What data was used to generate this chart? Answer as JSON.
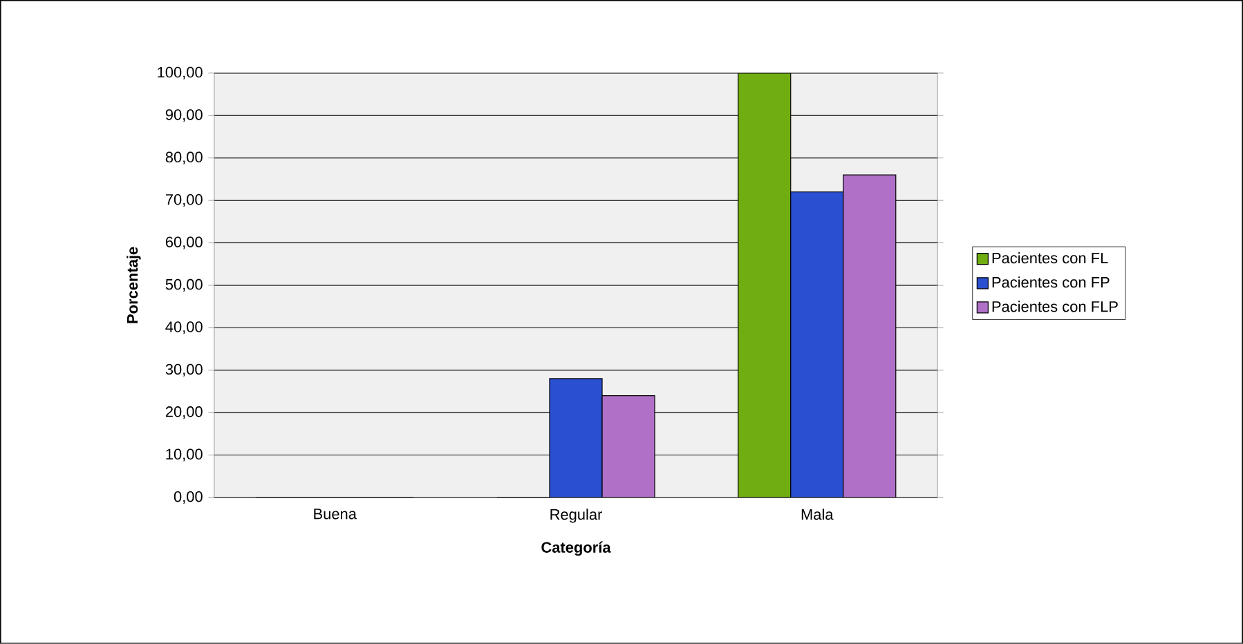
{
  "chart_data": {
    "type": "bar",
    "xlabel": "Categoría",
    "ylabel": "Porcentaje",
    "categories": [
      "Buena",
      "Regular",
      "Mala"
    ],
    "series": [
      {
        "name": "Pacientes con FL",
        "color": "#70ad10",
        "values": [
          0,
          0,
          100
        ]
      },
      {
        "name": "Pacientes con FP",
        "color": "#2a4fd0",
        "values": [
          0,
          28,
          72
        ]
      },
      {
        "name": "Pacientes con FLP",
        "color": "#b070c8",
        "values": [
          0,
          24,
          76
        ]
      }
    ],
    "ylim": [
      0,
      100
    ],
    "yticks": [
      {
        "value": 0,
        "label": "0,00"
      },
      {
        "value": 10,
        "label": "10,00"
      },
      {
        "value": 20,
        "label": "20,00"
      },
      {
        "value": 30,
        "label": "30,00"
      },
      {
        "value": 40,
        "label": "40,00"
      },
      {
        "value": 50,
        "label": "50,00"
      },
      {
        "value": 60,
        "label": "60,00"
      },
      {
        "value": 70,
        "label": "70,00"
      },
      {
        "value": 80,
        "label": "80,00"
      },
      {
        "value": 90,
        "label": "90,00"
      },
      {
        "value": 100,
        "label": "100,00"
      }
    ],
    "grid": "y",
    "legend": "right"
  }
}
